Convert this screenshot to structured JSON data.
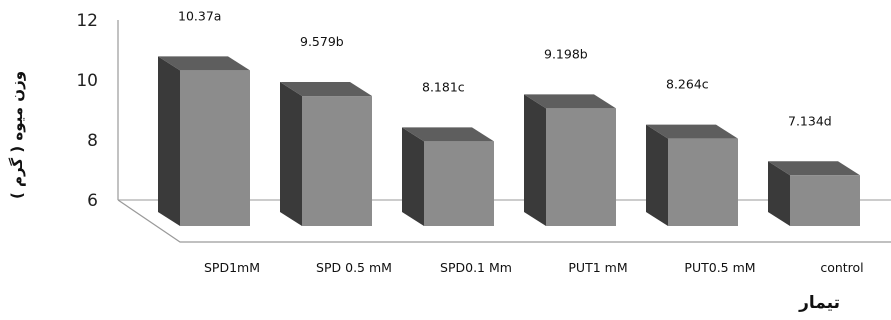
{
  "chart_data": {
    "type": "bar",
    "title": "",
    "xlabel": "تیمار",
    "ylabel": "وزن میوه ( گرم )",
    "ylim": [
      6,
      12
    ],
    "yticks": [
      6,
      8,
      10,
      12
    ],
    "categories": [
      "SPD1mM",
      "SPD 0.5 mM",
      "SPD0.1 Mm",
      "PUT1 mM",
      "PUT0.5 mM",
      "control"
    ],
    "values": [
      10.37,
      9.579,
      8.181,
      9.198,
      8.264,
      7.134
    ],
    "data_labels": [
      "10.37a",
      "9.579b",
      "8.181c",
      "9.198b",
      "8.264c",
      "7.134d"
    ],
    "grid": false,
    "legend": "none",
    "colors": {
      "bar_front": "#8c8c8c",
      "bar_top": "#5e5e5e",
      "bar_side": "#3a3a3a",
      "axis": "#9a9a9a"
    }
  }
}
